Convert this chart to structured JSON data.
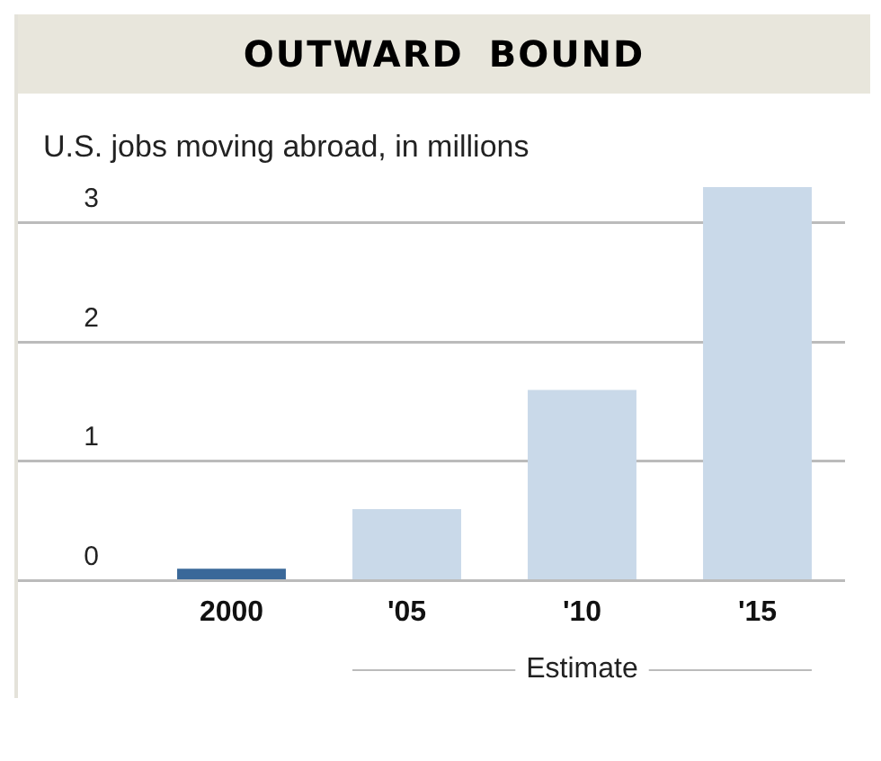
{
  "chart_data": {
    "type": "bar",
    "title": "OUTWARD BOUND",
    "subtitle": "U.S. jobs moving abroad, in millions",
    "categories": [
      "2000",
      "'05",
      "'10",
      "'15"
    ],
    "values": [
      0.1,
      0.6,
      1.6,
      3.3
    ],
    "colors": [
      "#3a6899",
      "#c9d9e9",
      "#c9d9e9",
      "#c9d9e9"
    ],
    "ylim": [
      0,
      3.3
    ],
    "yticks": [
      0,
      1,
      2,
      3
    ],
    "grid": "y",
    "legend": false,
    "annotations": [
      "Estimate"
    ]
  }
}
